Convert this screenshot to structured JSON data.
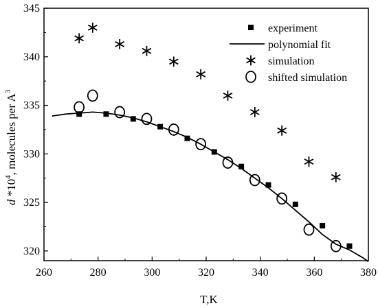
{
  "chart_data": {
    "type": "scatter",
    "xlabel": "T,K",
    "ylabel": {
      "d": "d",
      "times": " *10",
      "exp": "4",
      "rest": ", molecules per A",
      "exp2": "3"
    },
    "xlim": [
      260,
      380
    ],
    "ylim": [
      319,
      345
    ],
    "xticks": [
      260,
      280,
      300,
      320,
      340,
      360,
      380
    ],
    "yticks": [
      320,
      325,
      330,
      335,
      340,
      345
    ],
    "grid": false,
    "legend_position": "top-right",
    "series": [
      {
        "name": "experiment",
        "marker": "square",
        "x": [
          273,
          283,
          293,
          303,
          313,
          323,
          333,
          343,
          353,
          363,
          373
        ],
        "y": [
          334.1,
          334.1,
          333.6,
          332.8,
          331.6,
          330.2,
          328.7,
          326.8,
          324.8,
          322.6,
          320.5
        ]
      },
      {
        "name": "polynomial fit",
        "marker": "line",
        "x": [
          263,
          268,
          273,
          278,
          283,
          288,
          293,
          298,
          303,
          308,
          313,
          318,
          323,
          328,
          333,
          338,
          343,
          348,
          353,
          358,
          363,
          368,
          373,
          378,
          380
        ],
        "y": [
          333.9,
          334.1,
          334.2,
          334.3,
          334.2,
          334.0,
          333.7,
          333.3,
          332.8,
          332.3,
          331.7,
          331.0,
          330.2,
          329.4,
          328.5,
          327.5,
          326.5,
          325.4,
          324.2,
          323.0,
          321.7,
          320.7,
          320.1,
          319.3,
          318.9
        ]
      },
      {
        "name": "simulation",
        "marker": "asterisk",
        "x": [
          273,
          278,
          288,
          298,
          308,
          318,
          328,
          338,
          348,
          358,
          368
        ],
        "y": [
          341.9,
          343.0,
          341.3,
          340.6,
          339.5,
          338.2,
          336.0,
          334.3,
          332.4,
          329.2,
          327.6
        ]
      },
      {
        "name": "shifted simulation",
        "marker": "circle",
        "x": [
          273,
          278,
          288,
          298,
          308,
          318,
          328,
          338,
          348,
          358,
          368
        ],
        "y": [
          334.8,
          336.0,
          334.3,
          333.6,
          332.5,
          331.0,
          329.1,
          327.3,
          325.4,
          322.2,
          320.5
        ]
      }
    ]
  }
}
